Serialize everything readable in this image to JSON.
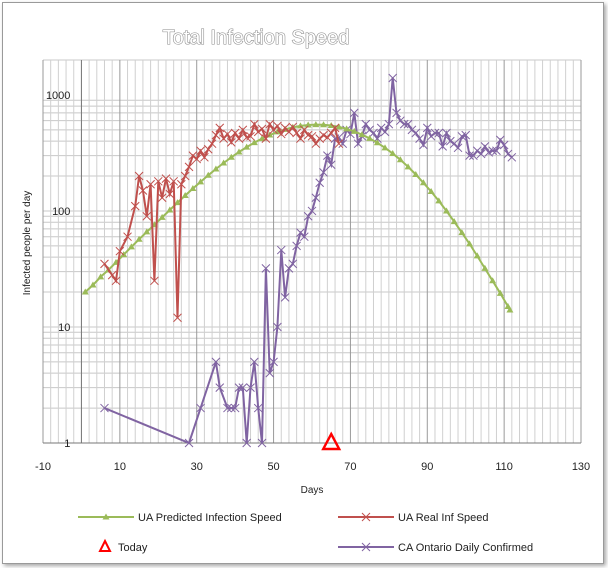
{
  "chart_data": {
    "type": "line",
    "title": "Total Infection Speed",
    "xlabel": "Days",
    "ylabel": "Infected people per day",
    "xlim": [
      -10,
      130
    ],
    "ylim": [
      1,
      2000
    ],
    "y_scale": "log",
    "x_ticks": [
      -10,
      10,
      30,
      50,
      70,
      90,
      110,
      130
    ],
    "y_ticks": [
      1,
      10,
      100,
      1000
    ],
    "grid": true,
    "legend_position": "bottom",
    "series": [
      {
        "name": "UA Predicted Infection Speed",
        "color": "#9bbb59",
        "marker": "triangle",
        "points": [
          [
            1,
            20
          ],
          [
            3,
            23
          ],
          [
            5,
            27
          ],
          [
            7,
            31
          ],
          [
            9,
            36
          ],
          [
            11,
            42
          ],
          [
            13,
            49
          ],
          [
            15,
            57
          ],
          [
            17,
            66
          ],
          [
            19,
            76
          ],
          [
            21,
            88
          ],
          [
            23,
            102
          ],
          [
            25,
            118
          ],
          [
            27,
            136
          ],
          [
            29,
            156
          ],
          [
            31,
            178
          ],
          [
            33,
            203
          ],
          [
            35,
            230
          ],
          [
            37,
            259
          ],
          [
            39,
            290
          ],
          [
            41,
            322
          ],
          [
            43,
            355
          ],
          [
            45,
            388
          ],
          [
            47,
            420
          ],
          [
            49,
            451
          ],
          [
            51,
            480
          ],
          [
            53,
            505
          ],
          [
            55,
            526
          ],
          [
            57,
            541
          ],
          [
            59,
            551
          ],
          [
            61,
            555
          ],
          [
            63,
            553
          ],
          [
            65,
            545
          ],
          [
            67,
            530
          ],
          [
            69,
            510
          ],
          [
            71,
            485
          ],
          [
            73,
            455
          ],
          [
            75,
            422
          ],
          [
            77,
            387
          ],
          [
            79,
            350
          ],
          [
            81,
            313
          ],
          [
            83,
            276
          ],
          [
            85,
            240
          ],
          [
            87,
            206
          ],
          [
            89,
            175
          ],
          [
            91,
            147
          ],
          [
            93,
            122
          ],
          [
            95,
            100
          ],
          [
            97,
            81
          ],
          [
            99,
            65
          ],
          [
            101,
            52
          ],
          [
            103,
            41
          ],
          [
            105,
            32
          ],
          [
            107,
            25
          ],
          [
            109,
            19.5
          ],
          [
            111,
            15
          ],
          [
            111.5,
            14
          ]
        ]
      },
      {
        "name": "UA Real Inf Speed",
        "color": "#c0504d",
        "marker": "x",
        "points": [
          [
            6,
            35
          ],
          [
            8,
            28
          ],
          [
            9,
            25
          ],
          [
            10,
            45
          ],
          [
            12,
            60
          ],
          [
            14,
            110
          ],
          [
            15,
            200
          ],
          [
            16,
            150
          ],
          [
            17,
            90
          ],
          [
            18,
            170
          ],
          [
            19,
            25
          ],
          [
            20,
            180
          ],
          [
            21,
            130
          ],
          [
            22,
            190
          ],
          [
            23,
            140
          ],
          [
            24,
            180
          ],
          [
            25,
            12
          ],
          [
            26,
            170
          ],
          [
            27,
            200
          ],
          [
            28,
            240
          ],
          [
            29,
            300
          ],
          [
            30,
            280
          ],
          [
            31,
            330
          ],
          [
            32,
            290
          ],
          [
            33,
            340
          ],
          [
            34,
            380
          ],
          [
            35,
            450
          ],
          [
            36,
            520
          ],
          [
            37,
            420
          ],
          [
            38,
            460
          ],
          [
            39,
            390
          ],
          [
            40,
            470
          ],
          [
            41,
            420
          ],
          [
            42,
            500
          ],
          [
            43,
            430
          ],
          [
            44,
            440
          ],
          [
            45,
            560
          ],
          [
            46,
            480
          ],
          [
            47,
            510
          ],
          [
            48,
            420
          ],
          [
            49,
            560
          ],
          [
            50,
            500
          ],
          [
            51,
            540
          ],
          [
            52,
            460
          ],
          [
            53,
            520
          ],
          [
            54,
            480
          ],
          [
            55,
            530
          ],
          [
            56,
            470
          ],
          [
            57,
            420
          ],
          [
            58,
            500
          ],
          [
            59,
            450
          ],
          [
            60,
            440
          ],
          [
            61,
            380
          ],
          [
            62,
            420
          ],
          [
            63,
            450
          ],
          [
            64,
            430
          ],
          [
            65,
            470
          ],
          [
            66,
            520
          ],
          [
            67,
            380
          ]
        ]
      },
      {
        "name": "CA Ontario Daily Confirmed",
        "color": "#8064a2",
        "marker": "x",
        "points": [
          [
            6,
            2
          ],
          [
            28,
            1
          ],
          [
            31,
            2
          ],
          [
            35,
            5
          ],
          [
            36,
            3
          ],
          [
            38,
            2
          ],
          [
            39,
            2
          ],
          [
            40,
            2
          ],
          [
            41,
            3
          ],
          [
            42,
            3
          ],
          [
            43,
            1
          ],
          [
            44,
            3
          ],
          [
            45,
            5
          ],
          [
            46,
            2
          ],
          [
            47,
            1
          ],
          [
            48,
            32
          ],
          [
            49,
            4
          ],
          [
            50,
            5
          ],
          [
            51,
            10
          ],
          [
            52,
            46
          ],
          [
            53,
            18
          ],
          [
            54,
            32
          ],
          [
            55,
            35
          ],
          [
            56,
            50
          ],
          [
            57,
            65
          ],
          [
            58,
            60
          ],
          [
            59,
            90
          ],
          [
            60,
            100
          ],
          [
            61,
            130
          ],
          [
            62,
            175
          ],
          [
            63,
            215
          ],
          [
            64,
            300
          ],
          [
            65,
            250
          ],
          [
            66,
            420
          ],
          [
            67,
            430
          ],
          [
            68,
            380
          ],
          [
            69,
            500
          ],
          [
            70,
            460
          ],
          [
            71,
            700
          ],
          [
            72,
            380
          ],
          [
            73,
            440
          ],
          [
            74,
            560
          ],
          [
            75,
            500
          ],
          [
            76,
            470
          ],
          [
            77,
            420
          ],
          [
            78,
            520
          ],
          [
            79,
            480
          ],
          [
            80,
            560
          ],
          [
            81,
            1400
          ],
          [
            82,
            700
          ],
          [
            83,
            600
          ],
          [
            84,
            560
          ],
          [
            85,
            560
          ],
          [
            86,
            500
          ],
          [
            87,
            470
          ],
          [
            88,
            420
          ],
          [
            89,
            370
          ],
          [
            90,
            520
          ],
          [
            91,
            440
          ],
          [
            92,
            470
          ],
          [
            93,
            470
          ],
          [
            94,
            360
          ],
          [
            95,
            470
          ],
          [
            96,
            400
          ],
          [
            97,
            380
          ],
          [
            98,
            350
          ],
          [
            99,
            440
          ],
          [
            100,
            450
          ],
          [
            101,
            300
          ],
          [
            102,
            300
          ],
          [
            103,
            330
          ],
          [
            104,
            310
          ],
          [
            105,
            360
          ],
          [
            106,
            320
          ],
          [
            107,
            330
          ],
          [
            108,
            330
          ],
          [
            109,
            410
          ],
          [
            110,
            370
          ],
          [
            111,
            310
          ],
          [
            112,
            290
          ]
        ]
      },
      {
        "name": "Today",
        "color": "#ff0000",
        "marker": "triangle-open",
        "points": [
          [
            65,
            1
          ]
        ]
      }
    ]
  }
}
